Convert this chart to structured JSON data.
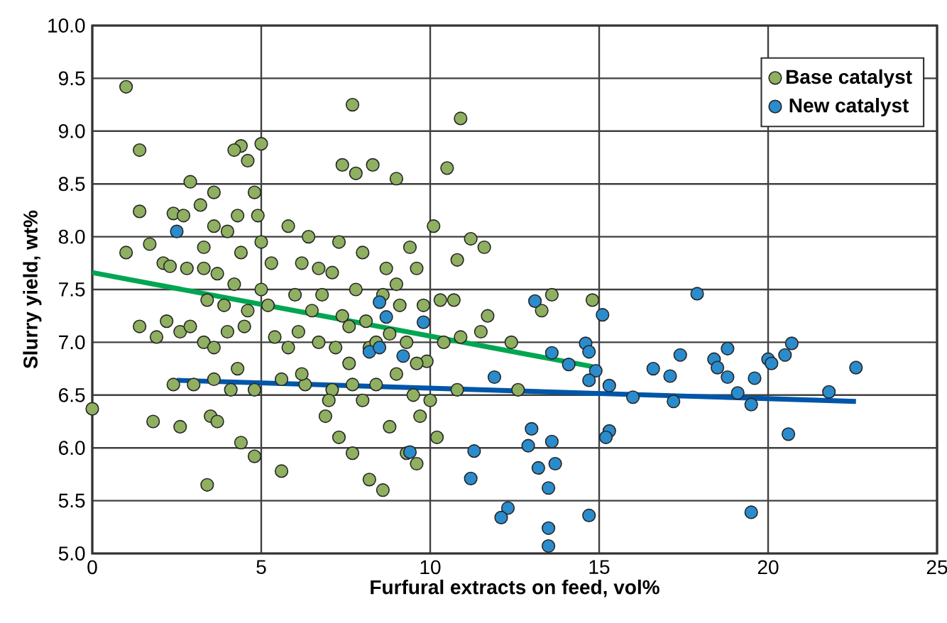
{
  "chart_data": {
    "type": "scatter",
    "xlabel": "Furfural extracts on feed, vol%",
    "ylabel": "Slurry yield, wt%",
    "xlim": [
      0,
      25
    ],
    "ylim": [
      5,
      10
    ],
    "xticks": [
      0,
      5,
      10,
      15,
      20,
      25
    ],
    "yticks": [
      {
        "value": 5,
        "label": "5.0"
      },
      {
        "value": 5.5,
        "label": "5.5"
      },
      {
        "value": 6,
        "label": "6.0"
      },
      {
        "value": 6.5,
        "label": "6.5"
      },
      {
        "value": 7,
        "label": "7.0"
      },
      {
        "value": 7.5,
        "label": "7.5"
      },
      {
        "value": 8,
        "label": "8.0"
      },
      {
        "value": 8.5,
        "label": "8.5"
      },
      {
        "value": 9,
        "label": "9.0"
      },
      {
        "value": 9.5,
        "label": "9.5"
      },
      {
        "value": 10,
        "label": "10.0"
      }
    ],
    "grid": true,
    "legend": "top right",
    "marker": "circle",
    "series": [
      {
        "name": "Base catalyst",
        "color": "#8fb060",
        "x": [
          1.0,
          1.4,
          0,
          1.4,
          1.0,
          1.7,
          2.1,
          2.4,
          2.7,
          2.9,
          3.6,
          3.2,
          4.4,
          4.6,
          4.2,
          5.0,
          4.8,
          4.3,
          4.0,
          3.6,
          3.3,
          3.7,
          4.4,
          5.0,
          5.8,
          6.4,
          7.7,
          7.4,
          7.8,
          8.3,
          9.0,
          10.1,
          10.5,
          10.9,
          11.2,
          11.6,
          10.8,
          9.6,
          8.7,
          7.8,
          7.1,
          6.7,
          6.0,
          5.0,
          4.6,
          3.9,
          3.3,
          2.8,
          2.3,
          1.4,
          1.9,
          2.6,
          2.9,
          3.3,
          3.6,
          4.0,
          4.5,
          5.4,
          6.1,
          6.7,
          7.2,
          7.6,
          8.2,
          8.8,
          9.3,
          9.9,
          10.4,
          10.9,
          11.5,
          12.4,
          13.3,
          13.6,
          14.8,
          12.6,
          10.8,
          9.6,
          9.0,
          8.4,
          7.7,
          7.1,
          6.3,
          5.6,
          4.8,
          4.3,
          3.6,
          3.0,
          2.4,
          3.5,
          3.7,
          4.1,
          2.6,
          1.8,
          4.8,
          5.6,
          3.4,
          4.4,
          6.2,
          6.9,
          7.3,
          7.7,
          8.2,
          8.6,
          9.3,
          8.8,
          9.7,
          10.2,
          9.6,
          8.0,
          7.0,
          5.8,
          6.5,
          7.4,
          8.1,
          9.1,
          9.8,
          10.7,
          9.0,
          9.4,
          8.0,
          7.3,
          6.2,
          5.3,
          4.9,
          4.2,
          3.4,
          2.2,
          5.2,
          6.8,
          8.6,
          10.3,
          11.7,
          8.4,
          7.6,
          9.5,
          10.0
        ],
        "values": [
          9.42,
          8.82,
          6.37,
          8.24,
          7.85,
          7.93,
          7.75,
          8.22,
          8.2,
          8.52,
          8.42,
          8.3,
          8.86,
          8.72,
          8.82,
          8.88,
          8.42,
          8.2,
          8.05,
          8.1,
          7.9,
          7.65,
          7.85,
          7.95,
          8.1,
          8.0,
          9.25,
          8.68,
          8.6,
          8.68,
          8.55,
          8.1,
          8.65,
          9.12,
          7.98,
          7.9,
          7.78,
          7.7,
          7.7,
          7.5,
          7.66,
          7.7,
          7.45,
          7.5,
          7.3,
          7.35,
          7.7,
          7.7,
          7.72,
          7.15,
          7.05,
          7.1,
          7.15,
          7.0,
          6.95,
          7.1,
          7.15,
          7.05,
          7.1,
          7.0,
          6.95,
          6.8,
          6.95,
          7.08,
          7.0,
          6.82,
          7.0,
          7.05,
          7.1,
          7.0,
          7.3,
          7.45,
          7.4,
          6.55,
          6.55,
          6.8,
          6.7,
          6.6,
          6.6,
          6.55,
          6.6,
          6.65,
          6.55,
          6.75,
          6.65,
          6.6,
          6.6,
          6.3,
          6.25,
          6.55,
          6.2,
          6.25,
          5.92,
          5.78,
          5.65,
          6.05,
          6.7,
          6.3,
          6.1,
          5.95,
          5.7,
          5.6,
          5.95,
          6.2,
          6.3,
          6.1,
          5.85,
          6.45,
          6.45,
          6.95,
          7.3,
          7.25,
          7.2,
          7.35,
          7.35,
          7.4,
          7.55,
          7.9,
          7.85,
          7.95,
          7.75,
          7.75,
          8.2,
          7.55,
          7.4,
          7.2,
          7.35,
          7.45,
          7.45,
          7.4,
          7.25,
          7.0,
          7.15,
          6.5,
          6.45
        ]
      },
      {
        "name": "New catalyst",
        "color": "#2a8ccc",
        "x": [
          2.5,
          8.5,
          8.7,
          9.8,
          8.2,
          8.5,
          9.2,
          11.9,
          13.1,
          15.1,
          13.6,
          14.6,
          14.7,
          14.1,
          14.9,
          14.7,
          15.3,
          16.0,
          13.0,
          12.9,
          13.6,
          11.3,
          9.4,
          13.2,
          13.7,
          11.2,
          13.5,
          15.3,
          15.2,
          12.3,
          12.1,
          14.7,
          13.5,
          13.5,
          17.9,
          17.4,
          16.6,
          17.1,
          17.2,
          18.8,
          18.4,
          18.5,
          18.8,
          19.1,
          19.5,
          19.6,
          20.0,
          20.1,
          20.5,
          20.7,
          21.8,
          22.6,
          20.6,
          19.5
        ],
        "values": [
          8.05,
          7.38,
          7.24,
          7.19,
          6.91,
          6.95,
          6.87,
          6.67,
          7.39,
          7.26,
          6.9,
          6.99,
          6.91,
          6.79,
          6.73,
          6.64,
          6.59,
          6.48,
          6.18,
          6.02,
          6.06,
          5.97,
          5.96,
          5.81,
          5.85,
          5.71,
          5.62,
          6.16,
          6.1,
          5.43,
          5.34,
          5.36,
          5.24,
          5.07,
          7.46,
          6.88,
          6.75,
          6.68,
          6.44,
          6.94,
          6.84,
          6.76,
          6.67,
          6.52,
          6.41,
          6.66,
          6.84,
          6.8,
          6.88,
          6.99,
          6.53,
          6.76,
          6.13,
          5.39
        ]
      },
      {
        "type": "line",
        "marker": "none",
        "color": "#00a651",
        "x": [
          0,
          14.8
        ],
        "values": [
          7.66,
          6.77
        ]
      },
      {
        "type": "line",
        "marker": "none",
        "color": "#0056a8",
        "x": [
          2.5,
          22.6
        ],
        "values": [
          6.64,
          6.44
        ]
      }
    ]
  }
}
